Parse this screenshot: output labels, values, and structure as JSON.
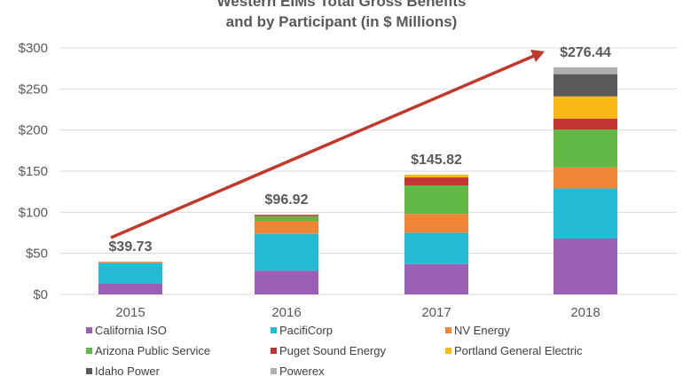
{
  "chart_data": {
    "type": "bar",
    "stacked": true,
    "title": "Western EIMs Total Gross Benefits and by Participant (in $ Millions)",
    "title_lines": [
      "Western EIMs Total Gross Benefits",
      "and by Participant (in $ Millions)"
    ],
    "categories": [
      "2015",
      "2016",
      "2017",
      "2018"
    ],
    "ylim": [
      0,
      300
    ],
    "yticks": [
      "$0",
      "$50",
      "$100",
      "$150",
      "$200",
      "$250",
      "$300"
    ],
    "grid": true,
    "legend_position": "bottom",
    "totals": [
      "$39.73",
      "$96.92",
      "$145.82",
      "$276.44"
    ],
    "trend_arrow_color": "#c0392b",
    "series": [
      {
        "name": "California ISO",
        "color": "#9b5fb4",
        "values": [
          13.0,
          29.0,
          37.0,
          68.0
        ]
      },
      {
        "name": "PacifiCorp",
        "color": "#24bcd4",
        "values": [
          25.1,
          44.7,
          38.2,
          61.0
        ]
      },
      {
        "name": "NV Energy",
        "color": "#ef8535",
        "values": [
          1.6,
          15.8,
          22.8,
          25.6
        ]
      },
      {
        "name": "Arizona Public Service",
        "color": "#62b845",
        "values": [
          0,
          5.7,
          34.7,
          46.0
        ]
      },
      {
        "name": "Puget Sound Energy",
        "color": "#c43633",
        "values": [
          0,
          1.7,
          9.7,
          13.4
        ]
      },
      {
        "name": "Portland General Electric",
        "color": "#fbb916",
        "values": [
          0,
          0,
          3.4,
          27.0
        ]
      },
      {
        "name": "Idaho Power",
        "color": "#58595b",
        "values": [
          0,
          0,
          0,
          27.0
        ]
      },
      {
        "name": "Powerex",
        "color": "#b0b0b0",
        "values": [
          0,
          0,
          0,
          8.4
        ]
      }
    ]
  }
}
